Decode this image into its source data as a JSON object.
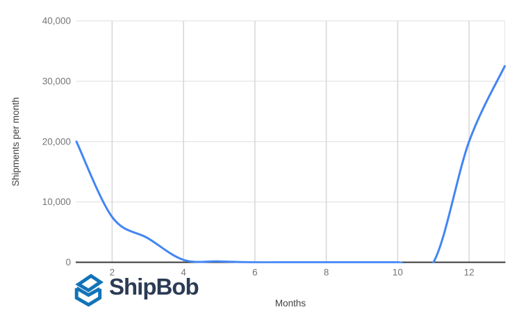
{
  "chart_data": {
    "type": "line",
    "title": "",
    "xlabel": "Months",
    "ylabel": "Shipments per month",
    "x": [
      1,
      2,
      3,
      4,
      5,
      6,
      7,
      8,
      9,
      10,
      11,
      12,
      13
    ],
    "series": [
      {
        "name": "Shipments per month",
        "values": [
          20000,
          7500,
          4000,
          400,
          150,
          0,
          0,
          0,
          0,
          0,
          0,
          20000,
          32500
        ]
      }
    ],
    "xlim": [
      1,
      13
    ],
    "ylim": [
      0,
      40000
    ],
    "xticks": [
      {
        "v": 2,
        "label": "2"
      },
      {
        "v": 4,
        "label": "4"
      },
      {
        "v": 6,
        "label": "6"
      },
      {
        "v": 8,
        "label": "8"
      },
      {
        "v": 10,
        "label": "10"
      },
      {
        "v": 12,
        "label": "12"
      }
    ],
    "yticks": [
      {
        "v": 0,
        "label": "0"
      },
      {
        "v": 10000,
        "label": "10,000"
      },
      {
        "v": 20000,
        "label": "20,000"
      },
      {
        "v": 30000,
        "label": "30,000"
      },
      {
        "v": 40000,
        "label": "40,000"
      }
    ],
    "grid": true,
    "legend": "none",
    "smooth": true,
    "line_color": "#4285f4",
    "axis_color": "#383838",
    "grid_color_h": "#e8e8e8",
    "grid_color_v": "#d6d6d6"
  },
  "logo": {
    "brand": "ShipBob",
    "icon": "shipbob-cube-icon",
    "icon_color": "#1273b7",
    "text_color": "#2b3b54"
  }
}
